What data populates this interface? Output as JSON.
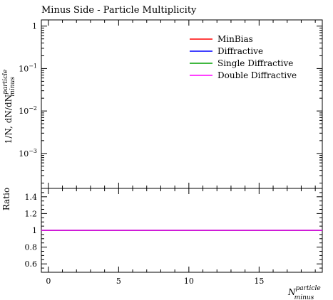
{
  "chart_data": [
    {
      "type": "line",
      "title": "Minus Side - Particle Multiplicity",
      "ylabel_main": "1/N, dN/dN",
      "ylabel_sup": "particle",
      "ylabel_sub": "minus",
      "yscale": "log",
      "ylim": [
        0.00015,
        1.4
      ],
      "yticks": [
        {
          "value": 1,
          "label": "1"
        },
        {
          "value": 0.1,
          "label": "10",
          "exp": "−1"
        },
        {
          "value": 0.01,
          "label": "10",
          "exp": "−2"
        },
        {
          "value": 0.001,
          "label": "10",
          "exp": "−3"
        }
      ],
      "xlim": [
        -0.5,
        19.5
      ],
      "series": [
        {
          "name": "MinBias",
          "color": "#ff0000"
        },
        {
          "name": "Diffractive",
          "color": "#0000ff"
        },
        {
          "name": "Single Diffractive",
          "color": "#00a000"
        },
        {
          "name": "Double Diffractive",
          "color": "#ff00ff"
        }
      ],
      "legend_position": "top-right"
    },
    {
      "type": "line",
      "ylabel": "Ratio",
      "ylim": [
        0.5,
        1.5
      ],
      "yticks": [
        {
          "value": 1.4,
          "label": "1.4"
        },
        {
          "value": 1.2,
          "label": "1.2"
        },
        {
          "value": 1.0,
          "label": "1"
        },
        {
          "value": 0.8,
          "label": "0.8"
        },
        {
          "value": 0.6,
          "label": "0.6"
        }
      ],
      "xlim": [
        -0.5,
        19.5
      ],
      "xticks": [
        {
          "value": 0,
          "label": "0"
        },
        {
          "value": 5,
          "label": "5"
        },
        {
          "value": 10,
          "label": "10"
        },
        {
          "value": 15,
          "label": "15"
        }
      ],
      "xlabel_main": "N",
      "xlabel_sup": "particle",
      "xlabel_sub": "minus",
      "ratio_line": {
        "value": 1.0,
        "color": "#ff00ff",
        "x": [
          -0.5,
          19.5
        ]
      }
    }
  ]
}
